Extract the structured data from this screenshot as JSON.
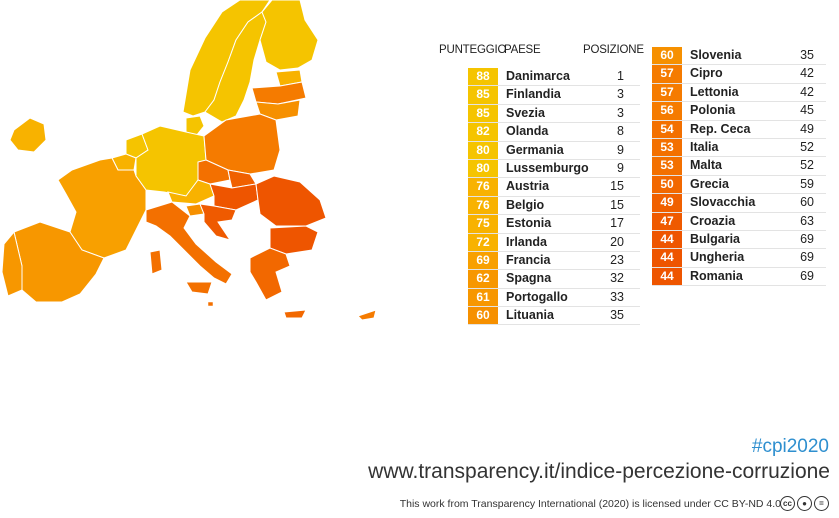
{
  "header": {
    "score": "PUNTEGGIO",
    "country": "PAESE",
    "rank": "POSIZIONE"
  },
  "colors": {
    "c88": "#f5c400",
    "c85": "#f5c400",
    "c82": "#f5c400",
    "c80": "#f5c400",
    "c76": "#f8b200",
    "c75": "#f8b200",
    "c72": "#f8b200",
    "c69": "#f8a000",
    "c62": "#f79700",
    "c61": "#f79700",
    "c60": "#f69000",
    "c57": "#f57b00",
    "c56": "#f57b00",
    "c54": "#f37000",
    "c53": "#f37000",
    "c50": "#f26800",
    "c49": "#f06000",
    "c47": "#ef5a00",
    "c44": "#ee5500"
  },
  "chart_data": {
    "type": "table",
    "columns": [
      "PUNTEGGIO",
      "PAESE",
      "POSIZIONE"
    ],
    "rows": [
      {
        "score": 88,
        "country": "Danimarca",
        "rank": 1
      },
      {
        "score": 85,
        "country": "Finlandia",
        "rank": 3
      },
      {
        "score": 85,
        "country": "Svezia",
        "rank": 3
      },
      {
        "score": 82,
        "country": "Olanda",
        "rank": 8
      },
      {
        "score": 80,
        "country": "Germania",
        "rank": 9
      },
      {
        "score": 80,
        "country": "Lussemburgo",
        "rank": 9
      },
      {
        "score": 76,
        "country": "Austria",
        "rank": 15
      },
      {
        "score": 76,
        "country": "Belgio",
        "rank": 15
      },
      {
        "score": 75,
        "country": "Estonia",
        "rank": 17
      },
      {
        "score": 72,
        "country": "Irlanda",
        "rank": 20
      },
      {
        "score": 69,
        "country": "Francia",
        "rank": 23
      },
      {
        "score": 62,
        "country": "Spagna",
        "rank": 32
      },
      {
        "score": 61,
        "country": "Portogallo",
        "rank": 33
      },
      {
        "score": 60,
        "country": "Lituania",
        "rank": 35
      },
      {
        "score": 60,
        "country": "Slovenia",
        "rank": 35
      },
      {
        "score": 57,
        "country": "Cipro",
        "rank": 42
      },
      {
        "score": 57,
        "country": "Lettonia",
        "rank": 42
      },
      {
        "score": 56,
        "country": "Polonia",
        "rank": 45
      },
      {
        "score": 54,
        "country": "Rep. Ceca",
        "rank": 49
      },
      {
        "score": 53,
        "country": "Italia",
        "rank": 52
      },
      {
        "score": 53,
        "country": "Malta",
        "rank": 52
      },
      {
        "score": 50,
        "country": "Grecia",
        "rank": 59
      },
      {
        "score": 49,
        "country": "Slovacchia",
        "rank": 60
      },
      {
        "score": 47,
        "country": "Croazia",
        "rank": 63
      },
      {
        "score": 44,
        "country": "Bulgaria",
        "rank": 69
      },
      {
        "score": 44,
        "country": "Ungheria",
        "rank": 69
      },
      {
        "score": 44,
        "country": "Romania",
        "rank": 69
      }
    ]
  },
  "footer": {
    "hashtag": "#cpi2020",
    "url": "www.transparency.it/indice-percezione-corruzione",
    "license": "This work from Transparency International (2020) is licensed under CC BY-ND 4.0",
    "cc_icons": [
      "cc-icon",
      "by-icon",
      "nd-icon"
    ]
  }
}
